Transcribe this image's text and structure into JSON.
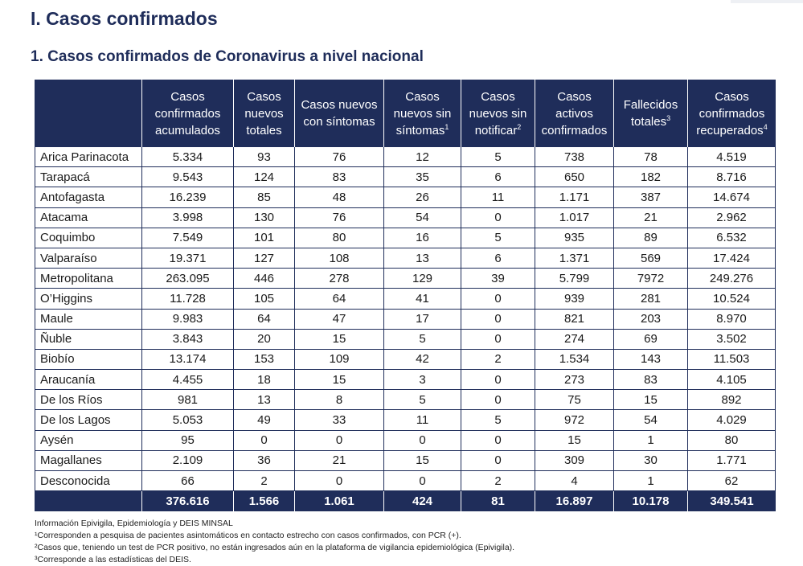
{
  "section_title": "I. Casos confirmados",
  "subtitle": "1. Casos confirmados de Coronavirus a nivel nacional",
  "headers": [
    {
      "text": "",
      "sup": ""
    },
    {
      "text": "Casos confirmados acumulados",
      "sup": ""
    },
    {
      "text": "Casos nuevos totales",
      "sup": ""
    },
    {
      "text": "Casos nuevos con síntomas",
      "sup": ""
    },
    {
      "text": "Casos nuevos sin síntomas",
      "sup": "1"
    },
    {
      "text": "Casos nuevos sin notificar",
      "sup": "2"
    },
    {
      "text": "Casos activos confirmados",
      "sup": ""
    },
    {
      "text": "Fallecidos totales",
      "sup": "3"
    },
    {
      "text": "Casos confirmados recuperados",
      "sup": "4"
    }
  ],
  "rows": [
    [
      "Arica Parinacota",
      "5.334",
      "93",
      "76",
      "12",
      "5",
      "738",
      "78",
      "4.519"
    ],
    [
      "Tarapacá",
      "9.543",
      "124",
      "83",
      "35",
      "6",
      "650",
      "182",
      "8.716"
    ],
    [
      "Antofagasta",
      "16.239",
      "85",
      "48",
      "26",
      "11",
      "1.171",
      "387",
      "14.674"
    ],
    [
      "Atacama",
      "3.998",
      "130",
      "76",
      "54",
      "0",
      "1.017",
      "21",
      "2.962"
    ],
    [
      "Coquimbo",
      "7.549",
      "101",
      "80",
      "16",
      "5",
      "935",
      "89",
      "6.532"
    ],
    [
      "Valparaíso",
      "19.371",
      "127",
      "108",
      "13",
      "6",
      "1.371",
      "569",
      "17.424"
    ],
    [
      "Metropolitana",
      "263.095",
      "446",
      "278",
      "129",
      "39",
      "5.799",
      "7972",
      "249.276"
    ],
    [
      "O’Higgins",
      "11.728",
      "105",
      "64",
      "41",
      "0",
      "939",
      "281",
      "10.524"
    ],
    [
      "Maule",
      "9.983",
      "64",
      "47",
      "17",
      "0",
      "821",
      "203",
      "8.970"
    ],
    [
      "Ñuble",
      "3.843",
      "20",
      "15",
      "5",
      "0",
      "274",
      "69",
      "3.502"
    ],
    [
      "Biobío",
      "13.174",
      "153",
      "109",
      "42",
      "2",
      "1.534",
      "143",
      "11.503"
    ],
    [
      "Araucanía",
      "4.455",
      "18",
      "15",
      "3",
      "0",
      "273",
      "83",
      "4.105"
    ],
    [
      "De los Ríos",
      "981",
      "13",
      "8",
      "5",
      "0",
      "75",
      "15",
      "892"
    ],
    [
      "De los Lagos",
      "5.053",
      "49",
      "33",
      "11",
      "5",
      "972",
      "54",
      "4.029"
    ],
    [
      "Aysén",
      "95",
      "0",
      "0",
      "0",
      "0",
      "15",
      "1",
      "80"
    ],
    [
      "Magallanes",
      "2.109",
      "36",
      "21",
      "15",
      "0",
      "309",
      "30",
      "1.771"
    ],
    [
      "Desconocida",
      "66",
      "2",
      "0",
      "0",
      "2",
      "4",
      "1",
      "62"
    ]
  ],
  "totals": [
    "",
    "376.616",
    "1.566",
    "1.061",
    "424",
    "81",
    "16.897",
    "10.178",
    "349.541"
  ],
  "notes": [
    "Información Epivigila, Epidemiología y DEIS MINSAL",
    "¹Corresponden a pesquisa de pacientes asintomáticos en contacto estrecho con casos confirmados, con PCR (+).",
    "²Casos que, teniendo un test de PCR positivo, no están ingresados aún en la plataforma de vigilancia epidemiológica (Epivigila).",
    "³Corresponde a las estadísticas del DEIS."
  ],
  "colors": {
    "header_bg": "#1f2d5a",
    "header_text": "#ffffff",
    "title": "#1f2d5a"
  }
}
